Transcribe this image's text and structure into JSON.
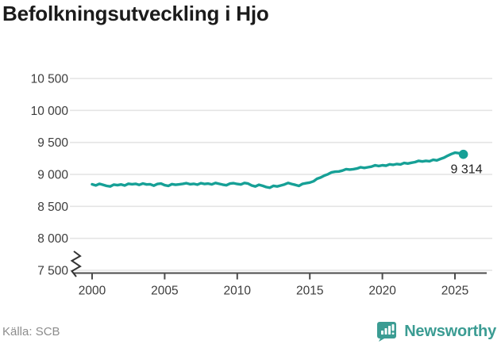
{
  "title": "Befolkningsutveckling i Hjo",
  "footer": {
    "source": "Källa: SCB",
    "brand": "Newsworthy"
  },
  "colors": {
    "line": "#16a096",
    "brand": "#3b9c93",
    "grid": "#e4e4e4",
    "axis": "#4b4b4b",
    "tick_label": "#3d3d3d",
    "title": "#1b1b1b",
    "source": "#8d8d8d",
    "end_label": "#1f1f1f"
  },
  "chart_data": {
    "type": "line",
    "title": "Befolkningsutveckling i Hjo",
    "xlabel": "",
    "ylabel": "",
    "xlim": [
      1998.7,
      2027.0
    ],
    "ylim": [
      7500,
      10500
    ],
    "axis_break": true,
    "grid": "horizontal",
    "legend": "none",
    "end_label": "9 314",
    "end_value": 9314,
    "x_ticks": [
      {
        "v": 2000,
        "label": "2000"
      },
      {
        "v": 2005,
        "label": "2005"
      },
      {
        "v": 2010,
        "label": "2010"
      },
      {
        "v": 2015,
        "label": "2015"
      },
      {
        "v": 2020,
        "label": "2020"
      },
      {
        "v": 2025,
        "label": "2025"
      }
    ],
    "y_ticks": [
      {
        "v": 7500,
        "label": "7 500"
      },
      {
        "v": 8000,
        "label": "8 000"
      },
      {
        "v": 8500,
        "label": "8 500"
      },
      {
        "v": 9000,
        "label": "9 000"
      },
      {
        "v": 9500,
        "label": "9 500"
      },
      {
        "v": 10000,
        "label": "10 000"
      },
      {
        "v": 10500,
        "label": "10 500"
      }
    ],
    "series": [
      {
        "name": "Hjo",
        "points": [
          [
            2000.0,
            8845
          ],
          [
            2000.25,
            8828
          ],
          [
            2000.5,
            8852
          ],
          [
            2000.75,
            8838
          ],
          [
            2001.0,
            8820
          ],
          [
            2001.25,
            8812
          ],
          [
            2001.5,
            8840
          ],
          [
            2001.75,
            8832
          ],
          [
            2002.0,
            8842
          ],
          [
            2002.25,
            8826
          ],
          [
            2002.5,
            8854
          ],
          [
            2002.75,
            8846
          ],
          [
            2003.0,
            8852
          ],
          [
            2003.25,
            8836
          ],
          [
            2003.5,
            8858
          ],
          [
            2003.75,
            8842
          ],
          [
            2004.0,
            8846
          ],
          [
            2004.25,
            8824
          ],
          [
            2004.5,
            8850
          ],
          [
            2004.75,
            8856
          ],
          [
            2005.0,
            8832
          ],
          [
            2005.25,
            8820
          ],
          [
            2005.5,
            8848
          ],
          [
            2005.75,
            8838
          ],
          [
            2006.0,
            8844
          ],
          [
            2006.25,
            8852
          ],
          [
            2006.5,
            8862
          ],
          [
            2006.75,
            8846
          ],
          [
            2007.0,
            8852
          ],
          [
            2007.25,
            8840
          ],
          [
            2007.5,
            8862
          ],
          [
            2007.75,
            8850
          ],
          [
            2008.0,
            8856
          ],
          [
            2008.25,
            8844
          ],
          [
            2008.5,
            8866
          ],
          [
            2008.75,
            8852
          ],
          [
            2009.0,
            8840
          ],
          [
            2009.25,
            8830
          ],
          [
            2009.5,
            8856
          ],
          [
            2009.75,
            8862
          ],
          [
            2010.0,
            8850
          ],
          [
            2010.25,
            8842
          ],
          [
            2010.5,
            8866
          ],
          [
            2010.75,
            8856
          ],
          [
            2011.0,
            8826
          ],
          [
            2011.25,
            8812
          ],
          [
            2011.5,
            8838
          ],
          [
            2011.75,
            8822
          ],
          [
            2012.0,
            8802
          ],
          [
            2012.25,
            8792
          ],
          [
            2012.5,
            8822
          ],
          [
            2012.75,
            8812
          ],
          [
            2013.0,
            8826
          ],
          [
            2013.25,
            8842
          ],
          [
            2013.5,
            8866
          ],
          [
            2013.75,
            8850
          ],
          [
            2014.0,
            8836
          ],
          [
            2014.25,
            8820
          ],
          [
            2014.5,
            8852
          ],
          [
            2014.75,
            8862
          ],
          [
            2015.0,
            8872
          ],
          [
            2015.25,
            8892
          ],
          [
            2015.5,
            8932
          ],
          [
            2015.75,
            8952
          ],
          [
            2016.0,
            8982
          ],
          [
            2016.25,
            9002
          ],
          [
            2016.5,
            9032
          ],
          [
            2016.75,
            9042
          ],
          [
            2017.0,
            9046
          ],
          [
            2017.25,
            9060
          ],
          [
            2017.5,
            9082
          ],
          [
            2017.75,
            9076
          ],
          [
            2018.0,
            9082
          ],
          [
            2018.25,
            9092
          ],
          [
            2018.5,
            9112
          ],
          [
            2018.75,
            9102
          ],
          [
            2019.0,
            9112
          ],
          [
            2019.25,
            9122
          ],
          [
            2019.5,
            9142
          ],
          [
            2019.75,
            9132
          ],
          [
            2020.0,
            9142
          ],
          [
            2020.25,
            9136
          ],
          [
            2020.5,
            9158
          ],
          [
            2020.75,
            9150
          ],
          [
            2021.0,
            9162
          ],
          [
            2021.25,
            9156
          ],
          [
            2021.5,
            9178
          ],
          [
            2021.75,
            9170
          ],
          [
            2022.0,
            9182
          ],
          [
            2022.25,
            9192
          ],
          [
            2022.5,
            9212
          ],
          [
            2022.75,
            9202
          ],
          [
            2023.0,
            9212
          ],
          [
            2023.25,
            9206
          ],
          [
            2023.5,
            9228
          ],
          [
            2023.75,
            9220
          ],
          [
            2024.0,
            9242
          ],
          [
            2024.25,
            9262
          ],
          [
            2024.5,
            9292
          ],
          [
            2024.75,
            9318
          ],
          [
            2025.0,
            9340
          ],
          [
            2025.25,
            9332
          ],
          [
            2025.58,
            9314
          ]
        ]
      }
    ]
  }
}
